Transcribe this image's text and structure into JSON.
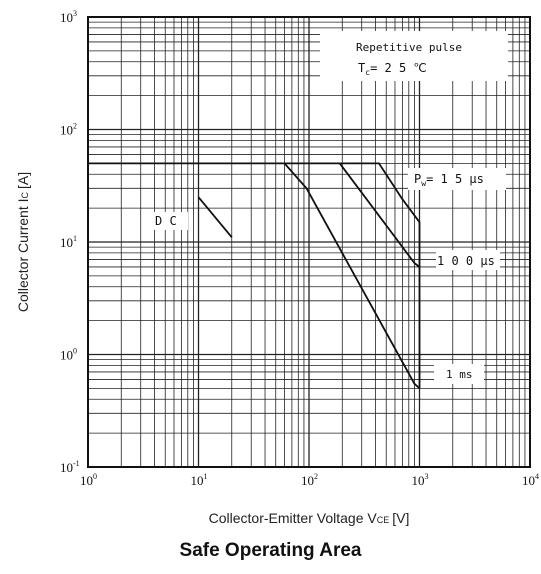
{
  "chart_data": {
    "type": "line",
    "title": "Safe Operating Area",
    "xlabel": "Collector-Emitter Voltage V",
    "xlabel_subscript": "CE",
    "xlabel_unit": "[V]",
    "ylabel": "Collector Current I",
    "ylabel_subscript": "C",
    "ylabel_unit": "[A]",
    "x_scale": "log",
    "y_scale": "log",
    "xlim": [
      1,
      10000
    ],
    "ylim": [
      0.1,
      1000
    ],
    "grid": true,
    "x_ticks": [
      {
        "base": "10",
        "exp": "0",
        "value": 1
      },
      {
        "base": "10",
        "exp": "1",
        "value": 10
      },
      {
        "base": "10",
        "exp": "2",
        "value": 100
      },
      {
        "base": "10",
        "exp": "3",
        "value": 1000
      },
      {
        "base": "10",
        "exp": "4",
        "value": 10000
      }
    ],
    "y_ticks": [
      {
        "base": "10",
        "exp": "-1",
        "value": 0.1
      },
      {
        "base": "10",
        "exp": "0",
        "value": 1
      },
      {
        "base": "10",
        "exp": "1",
        "value": 10
      },
      {
        "base": "10",
        "exp": "2",
        "value": 100
      },
      {
        "base": "10",
        "exp": "3",
        "value": 1000
      }
    ],
    "annotation_box": {
      "line1": "Repetitive pulse",
      "line2_prefix": "T",
      "line2_sub": "c",
      "line2_suffix": "= 2 5 ℃"
    },
    "series": [
      {
        "label": "D C",
        "points": [
          [
            10,
            25
          ],
          [
            20,
            11
          ]
        ]
      },
      {
        "label": "1 ms",
        "points": [
          [
            1,
            50
          ],
          [
            60,
            50
          ],
          [
            95,
            30
          ],
          [
            900,
            0.55
          ],
          [
            1000,
            0.5
          ]
        ]
      },
      {
        "label": "1 0 0 μs",
        "points": [
          [
            60,
            50
          ],
          [
            190,
            50
          ],
          [
            900,
            6.5
          ],
          [
            1000,
            6
          ]
        ]
      },
      {
        "label_prefix": "P",
        "label_sub": "w",
        "label_suffix": "= 1 5 μs",
        "points": [
          [
            190,
            50
          ],
          [
            430,
            50
          ],
          [
            700,
            24
          ],
          [
            1000,
            15
          ],
          [
            1000,
            0.5
          ]
        ]
      }
    ]
  },
  "colors": {
    "line": "#111111",
    "grid": "#222222",
    "background": "#ffffff"
  }
}
